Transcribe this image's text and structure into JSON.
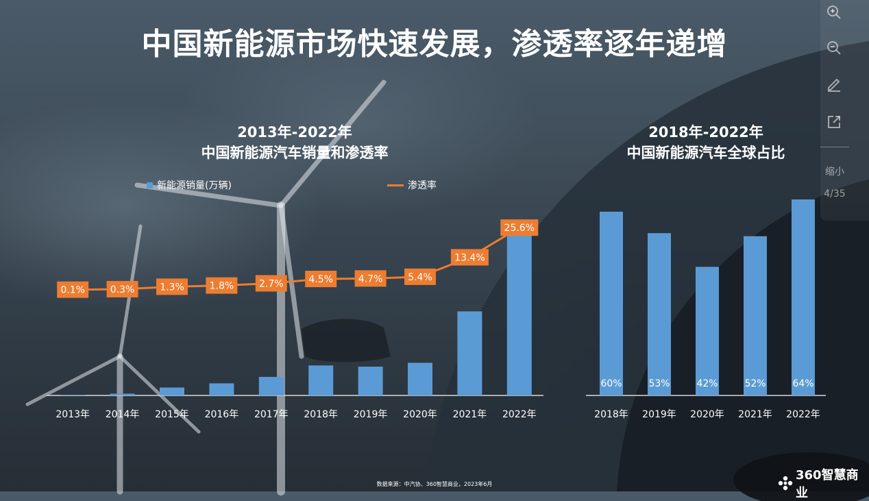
{
  "headline": "中国新能源市场快速发展，渗透率逐年递增",
  "left_chart": {
    "title_line1": "2013年-2022年",
    "title_line2": "中国新能源汽车销量和渗透率",
    "legend_bar": "新能源销量(万辆)",
    "legend_line": "渗透率"
  },
  "right_chart": {
    "title_line1": "2018年-2022年",
    "title_line2": "中国新能源汽车全球占比"
  },
  "toolbar": {
    "shrink_label": "缩小",
    "page_indicator": "4/35"
  },
  "source": "数据来源：中汽协、360智慧商业，2023年6月",
  "brand": "360智慧商业",
  "colors": {
    "bar": "#5b9bd5",
    "line": "#ed7d31",
    "label_box": "#ed7d31",
    "axis": "#d9d9d9"
  },
  "chart_data": [
    {
      "type": "bar",
      "categories": [
        "2013年",
        "2014年",
        "2015年",
        "2016年",
        "2017年",
        "2018年",
        "2019年",
        "2020年",
        "2021年",
        "2022年"
      ],
      "series": [
        {
          "name": "新能源销量(万辆)",
          "values": [
            1.8,
            7.5,
            33.1,
            50.7,
            77.7,
            125.6,
            120.6,
            136.7,
            352.1,
            688.7
          ]
        },
        {
          "name": "渗透率",
          "type": "line",
          "values": [
            0.1,
            0.3,
            1.3,
            1.8,
            2.7,
            4.5,
            4.7,
            5.4,
            13.4,
            25.6
          ],
          "labels": [
            "0.1%",
            "0.3%",
            "1.3%",
            "1.8%",
            "2.7%",
            "4.5%",
            "4.7%",
            "5.4%",
            "13.4%",
            "25.6%"
          ]
        }
      ],
      "grid": false,
      "legend": "top"
    },
    {
      "type": "bar",
      "categories": [
        "2018年",
        "2019年",
        "2020年",
        "2021年",
        "2022年"
      ],
      "values": [
        60,
        53,
        42,
        52,
        64
      ],
      "labels": [
        "60%",
        "53%",
        "42%",
        "52%",
        "64%"
      ],
      "grid": false
    }
  ]
}
